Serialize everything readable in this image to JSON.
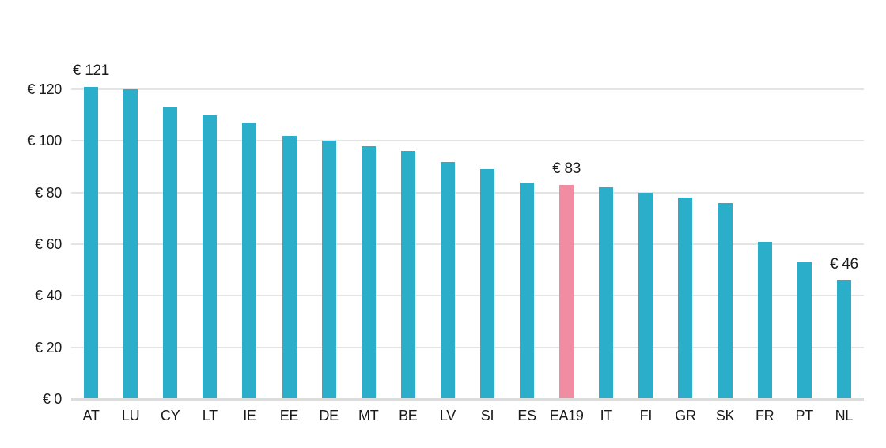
{
  "chart_data": {
    "type": "bar",
    "title": "",
    "xlabel": "",
    "ylabel": "",
    "currency_unit": "EUR",
    "categories": [
      "AT",
      "LU",
      "CY",
      "LT",
      "IE",
      "EE",
      "DE",
      "MT",
      "BE",
      "LV",
      "SI",
      "ES",
      "EA19",
      "IT",
      "FI",
      "GR",
      "SK",
      "FR",
      "PT",
      "NL"
    ],
    "values": [
      121,
      120,
      113,
      110,
      107,
      102,
      100,
      98,
      96,
      92,
      89,
      84,
      83,
      82,
      80,
      78,
      76,
      61,
      53,
      46
    ],
    "highlight_category": "EA19",
    "annotations": [
      {
        "category": "AT",
        "label": "€ 121"
      },
      {
        "category": "EA19",
        "label": "€ 83"
      },
      {
        "category": "NL",
        "label": "€ 46"
      }
    ],
    "y_ticks": [
      {
        "value": 0,
        "label": "€ 0"
      },
      {
        "value": 20,
        "label": "€ 20"
      },
      {
        "value": 40,
        "label": "€ 40"
      },
      {
        "value": 60,
        "label": "€ 60"
      },
      {
        "value": 80,
        "label": "€ 80"
      },
      {
        "value": 100,
        "label": "€ 100"
      },
      {
        "value": 120,
        "label": "€ 120"
      }
    ],
    "ylim": [
      0,
      120
    ],
    "grid": "horizontal",
    "legend": "none",
    "colors": {
      "bar": "#2baec9",
      "highlight_bar": "#f08da3",
      "gridline": "#e4e4e4",
      "baseline": "#dcdcdc",
      "text": "#1a1a1a"
    }
  }
}
